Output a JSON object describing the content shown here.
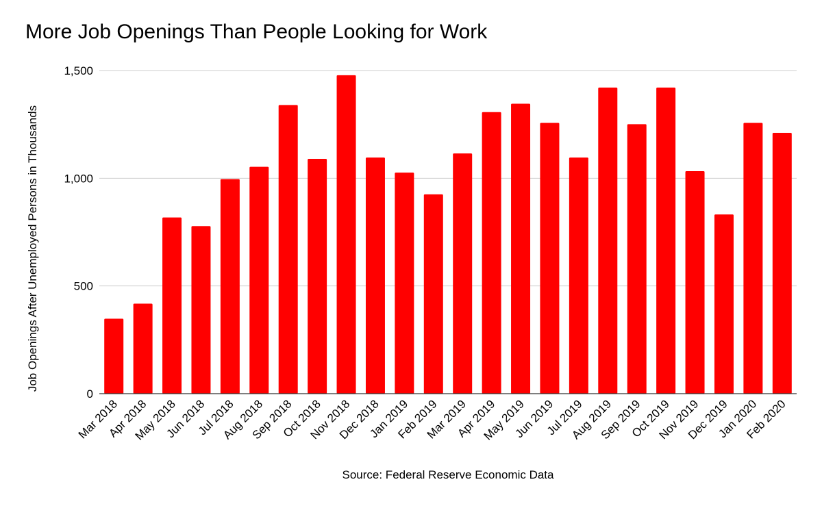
{
  "chart_data": {
    "type": "bar",
    "title": "More Job Openings Than People Looking for Work",
    "xlabel": "Source: Federal Reserve Economic Data",
    "ylabel": "Job Openings After Unemployed Persons in Thousands",
    "ylim": [
      0,
      1500
    ],
    "yticks": [
      0,
      500,
      1000,
      1500
    ],
    "ytick_labels": [
      "0",
      "500",
      "1,000",
      "1,500"
    ],
    "grid": true,
    "legend": "none",
    "bar_color": "#ff0000",
    "categories": [
      "Mar 2018",
      "Apr 2018",
      "May 2018",
      "Jun 2018",
      "Jul 2018",
      "Aug 2018",
      "Sep 2018",
      "Oct 2018",
      "Nov 2018",
      "Dec 2018",
      "Jan 2019",
      "Feb 2019",
      "Mar 2019",
      "Apr 2019",
      "May 2019",
      "Jun 2019",
      "Jul 2019",
      "Aug 2019",
      "Sep 2019",
      "Oct 2019",
      "Nov 2019",
      "Dec 2019",
      "Jan 2020",
      "Feb 2020"
    ],
    "values": [
      348,
      418,
      818,
      778,
      996,
      1053,
      1340,
      1090,
      1478,
      1096,
      1026,
      925,
      1115,
      1307,
      1346,
      1257,
      1096,
      1421,
      1251,
      1421,
      1033,
      832,
      1257,
      1211
    ]
  }
}
